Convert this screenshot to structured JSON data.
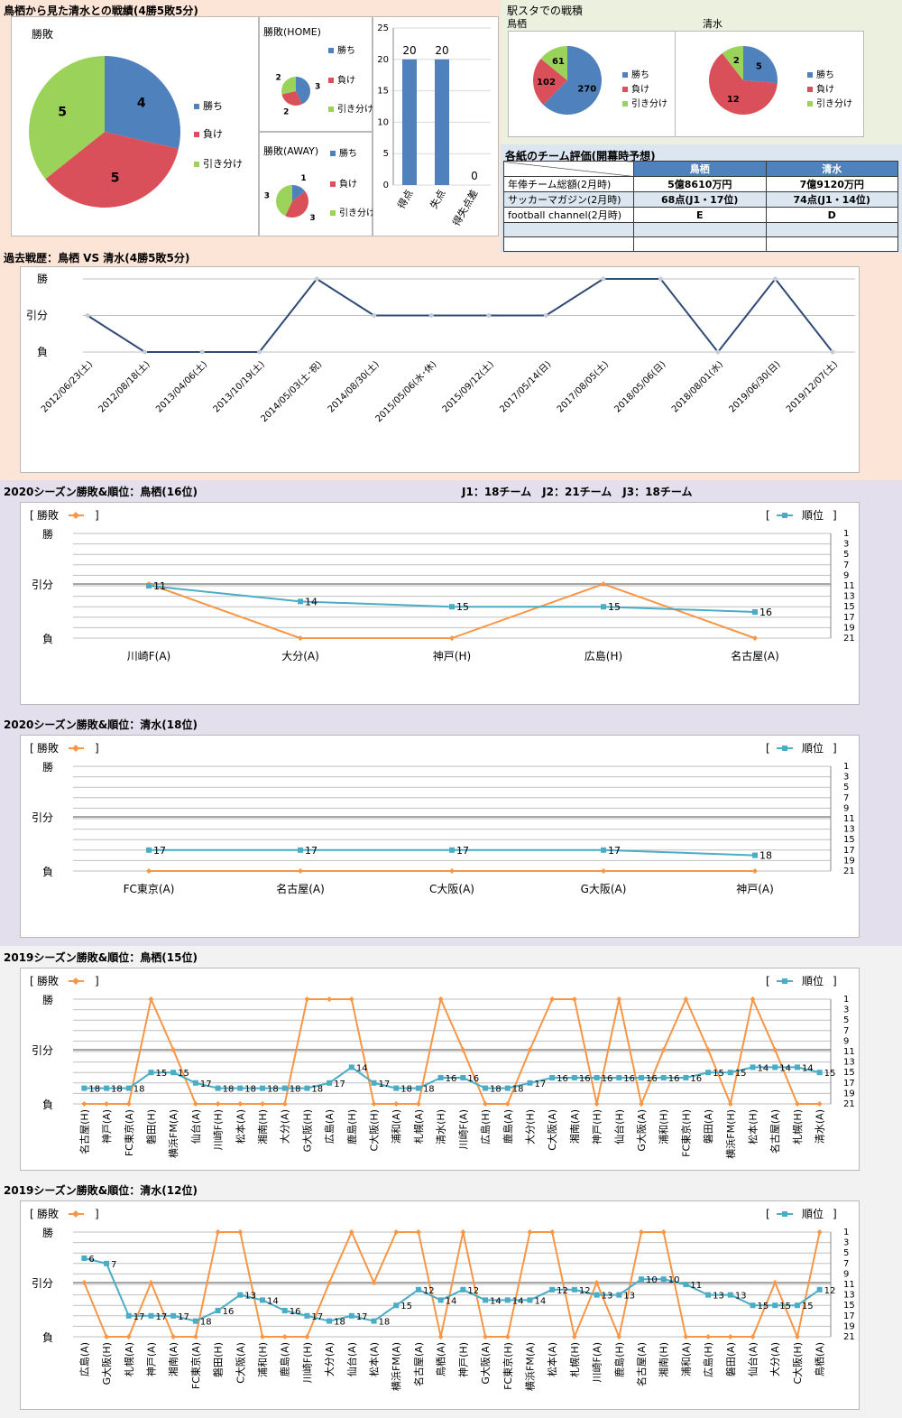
{
  "colors": {
    "win": "#4f81bd",
    "loss": "#d9505a",
    "draw": "#9bd35a",
    "line_dark": "#2f4a73",
    "rank": "#4bacc6",
    "result": "#f79646"
  },
  "top": {
    "title": "鳥栖から見た清水との戦績(4勝5敗5分)",
    "pie_main": {
      "title": "勝敗",
      "legend": [
        "勝ち",
        "負け",
        "引き分け"
      ]
    },
    "pie_home": {
      "title": "勝敗(HOME)",
      "legend": [
        "勝ち",
        "負け",
        "引き分け"
      ]
    },
    "pie_away": {
      "title": "勝敗(AWAY)",
      "legend": [
        "勝ち",
        "負け",
        "引き分け"
      ]
    },
    "bar": {
      "y_ticks": [
        "25",
        "20",
        "15",
        "10",
        "5",
        "0"
      ]
    },
    "eki_title": "駅スタでの戦積",
    "pie_tosu_label": "鳥栖",
    "pie_shimizu_label": "清水",
    "pie_tosu": {
      "legend": [
        "勝ち",
        "負け",
        "引き分け"
      ]
    },
    "pie_shimizu": {
      "legend": [
        "勝ち",
        "負け",
        "引き分け"
      ]
    },
    "eval_title": "各紙のチーム評価(開幕時予想)",
    "eval_headers": [
      "",
      "鳥栖",
      "清水"
    ],
    "eval_rows": [
      [
        "年俸チーム総額(2月時)",
        "5億8610万円",
        "7億9120万円"
      ],
      [
        "サッカーマガジン(2月時)",
        "68点(J1・17位)",
        "74点(J1・14位)"
      ],
      [
        "football channel(2月時)",
        "E",
        "D"
      ],
      [
        "",
        "",
        ""
      ],
      [
        "",
        "",
        ""
      ]
    ]
  },
  "history_title": "過去戦歴：鳥栖 VS 清水(4勝5敗5分)",
  "s2020_tosu_title": "2020シーズン勝敗&順位：鳥栖(16位)",
  "league_info": "J1：18チーム　J2：21チーム　J3：18チーム",
  "s2020_shimizu_title": "2020シーズン勝敗&順位：清水(18位)",
  "s2019_tosu_title": "2019シーズン勝敗&順位：鳥栖(15位)",
  "s2019_shimizu_title": "2019シーズン勝敗&順位：清水(12位)",
  "chart_data": [
    {
      "id": "h2h_pie",
      "type": "pie",
      "title": "勝敗",
      "labels": [
        "勝ち",
        "負け",
        "引き分け"
      ],
      "values": [
        4,
        5,
        5
      ],
      "legend": "right"
    },
    {
      "id": "home_pie",
      "type": "pie",
      "title": "勝敗(HOME)",
      "labels": [
        "勝ち",
        "負け",
        "引き分け"
      ],
      "values": [
        3,
        2,
        2
      ],
      "legend": "right"
    },
    {
      "id": "away_pie",
      "type": "pie",
      "title": "勝敗(AWAY)",
      "labels": [
        "勝ち",
        "負け",
        "引き分け"
      ],
      "values": [
        1,
        3,
        3
      ],
      "legend": "right"
    },
    {
      "id": "goals_bar",
      "type": "bar",
      "categories": [
        "得点",
        "失点",
        "得失点差"
      ],
      "values": [
        20,
        20,
        0
      ],
      "ylim": [
        0,
        25
      ]
    },
    {
      "id": "eki_tosu_pie",
      "type": "pie",
      "title": "鳥栖",
      "labels": [
        "勝ち",
        "負け",
        "引き分け"
      ],
      "values": [
        270,
        102,
        61
      ],
      "legend": "right"
    },
    {
      "id": "eki_shimizu_pie",
      "type": "pie",
      "title": "清水",
      "labels": [
        "勝ち",
        "負け",
        "引き分け"
      ],
      "values": [
        5,
        12,
        2
      ],
      "legend": "right"
    },
    {
      "id": "history",
      "type": "line",
      "title": "過去戦歴：鳥栖 VS 清水(4勝5敗5分)",
      "y_labels": [
        "勝",
        "引分",
        "負"
      ],
      "x": [
        "2012/06/23(土)",
        "2012/08/18(土)",
        "2013/04/06(土)",
        "2013/10/19(土)",
        "2014/05/03(土･祝)",
        "2014/08/30(土)",
        "2015/05/06(水･休)",
        "2015/09/12(土)",
        "2017/05/14(日)",
        "2017/08/05(土)",
        "2018/05/06(日)",
        "2018/08/01(水)",
        "2019/06/30(日)",
        "2019/12/07(土)"
      ],
      "series": [
        {
          "values": [
            1,
            0,
            0,
            0,
            2,
            1,
            1,
            1,
            1,
            2,
            2,
            0,
            2,
            0
          ]
        }
      ]
    },
    {
      "id": "s2020_tosu",
      "type": "line",
      "title": "2020シーズン勝敗&順位：鳥栖(16位)",
      "y_labels": [
        "勝",
        "引分",
        "負"
      ],
      "rank_ticks": [
        "1",
        "3",
        "5",
        "7",
        "9",
        "11",
        "13",
        "15",
        "17",
        "19",
        "21"
      ],
      "legend_left": "勝敗",
      "legend_right": "順位",
      "x": [
        "川崎F(A)",
        "大分(A)",
        "神戸(H)",
        "広島(H)",
        "名古屋(A)"
      ],
      "result": [
        1,
        0,
        0,
        1,
        0
      ],
      "rank": [
        11,
        14,
        15,
        15,
        16
      ]
    },
    {
      "id": "s2020_shimizu",
      "type": "line",
      "title": "2020シーズン勝敗&順位：清水(18位)",
      "y_labels": [
        "勝",
        "引分",
        "負"
      ],
      "rank_ticks": [
        "1",
        "3",
        "5",
        "7",
        "9",
        "11",
        "13",
        "15",
        "17",
        "19",
        "21"
      ],
      "legend_left": "勝敗",
      "legend_right": "順位",
      "x": [
        "FC東京(A)",
        "名古屋(A)",
        "C大阪(A)",
        "G大阪(A)",
        "神戸(A)"
      ],
      "result": [
        0,
        0,
        0,
        0,
        0
      ],
      "rank": [
        17,
        17,
        17,
        17,
        18
      ]
    },
    {
      "id": "s2019_tosu",
      "type": "line",
      "title": "2019シーズン勝敗&順位：鳥栖(15位)",
      "y_labels": [
        "勝",
        "引分",
        "負"
      ],
      "rank_ticks": [
        "1",
        "3",
        "5",
        "7",
        "9",
        "11",
        "13",
        "15",
        "17",
        "19",
        "21"
      ],
      "legend_left": "勝敗",
      "legend_right": "順位",
      "x": [
        "名古屋(H)",
        "神戸(A)",
        "FC東京(A)",
        "磐田(H)",
        "横浜FM(A)",
        "仙台(A)",
        "川崎F(H)",
        "松本(A)",
        "湘南(H)",
        "大分(A)",
        "G大阪(H)",
        "広島(A)",
        "鹿島(H)",
        "C大阪(H)",
        "浦和(A)",
        "札幌(A)",
        "清水(H)",
        "川崎F(A)",
        "広島(H)",
        "鹿島(A)",
        "大分(H)",
        "C大阪(A)",
        "湘南(A)",
        "神戸(H)",
        "仙台(H)",
        "G大阪(A)",
        "浦和(H)",
        "FC東京(H)",
        "磐田(A)",
        "横浜FM(H)",
        "松本(H)",
        "名古屋(A)",
        "札幌(H)",
        "清水(A)"
      ],
      "result": [
        0,
        0,
        0,
        2,
        1,
        0,
        0,
        0,
        0,
        0,
        2,
        2,
        2,
        0,
        0,
        0,
        2,
        1,
        0,
        0,
        1,
        2,
        2,
        0,
        2,
        0,
        1,
        2,
        1,
        0,
        2,
        1,
        0,
        0
      ],
      "rank": [
        18,
        18,
        18,
        15,
        15,
        17,
        18,
        18,
        18,
        18,
        18,
        17,
        14,
        17,
        18,
        18,
        16,
        16,
        18,
        18,
        17,
        16,
        16,
        16,
        16,
        16,
        16,
        16,
        15,
        15,
        14,
        14,
        14,
        15
      ]
    },
    {
      "id": "s2019_shimizu",
      "type": "line",
      "title": "2019シーズン勝敗&順位：清水(12位)",
      "y_labels": [
        "勝",
        "引分",
        "負"
      ],
      "rank_ticks": [
        "1",
        "3",
        "5",
        "7",
        "9",
        "11",
        "13",
        "15",
        "17",
        "19",
        "21"
      ],
      "legend_left": "勝敗",
      "legend_right": "順位",
      "x": [
        "広島(A)",
        "G大阪(H)",
        "札幌(A)",
        "神戸(A)",
        "湘南(A)",
        "FC東京(A)",
        "磐田(H)",
        "C大阪(A)",
        "浦和(H)",
        "鹿島(A)",
        "川崎F(H)",
        "大分(A)",
        "仙台(A)",
        "松本(A)",
        "横浜FM(A)",
        "名古屋(A)",
        "鳥栖(A)",
        "神戸(H)",
        "G大阪(A)",
        "FC東京(H)",
        "横浜FM(A)",
        "松本(A)",
        "札幌(H)",
        "川崎F(A)",
        "鹿島(H)",
        "名古屋(A)",
        "湘南(H)",
        "浦和(A)",
        "広島(H)",
        "磐田(A)",
        "仙台(A)",
        "大分(A)",
        "C大阪(H)",
        "鳥栖(A)"
      ],
      "result": [
        1,
        0,
        0,
        1,
        0,
        0,
        2,
        2,
        0,
        0,
        0,
        1,
        2,
        1,
        2,
        2,
        0,
        2,
        0,
        0,
        2,
        2,
        0,
        1,
        0,
        2,
        2,
        0,
        0,
        0,
        0,
        1,
        0,
        2
      ],
      "rank": [
        6,
        7,
        17,
        17,
        17,
        18,
        16,
        13,
        14,
        16,
        17,
        18,
        17,
        18,
        15,
        12,
        14,
        12,
        14,
        14,
        14,
        12,
        12,
        13,
        13,
        10,
        10,
        11,
        13,
        13,
        15,
        15,
        15,
        12
      ]
    }
  ]
}
